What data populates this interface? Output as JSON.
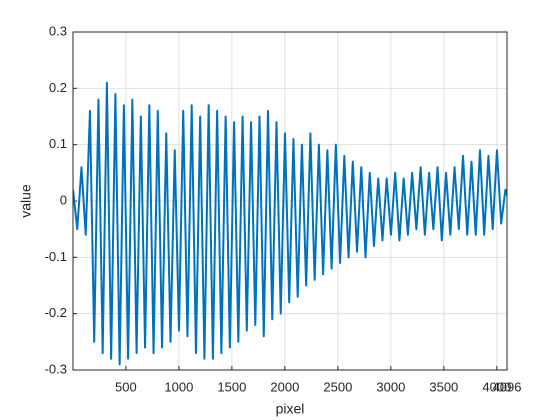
{
  "chart_data": {
    "type": "line",
    "xlabel": "pixel",
    "ylabel": "value",
    "color": "#0072bd",
    "grid": true,
    "xlim": [
      1,
      4096
    ],
    "xticks": [
      500,
      1000,
      1500,
      2000,
      2500,
      3000,
      3500,
      4000,
      4096
    ],
    "ylim": [
      -0.3,
      0.3
    ],
    "yticks": [
      -0.3,
      -0.2,
      -0.1,
      0,
      0.1,
      0.2,
      0.3
    ],
    "x": [
      1,
      41,
      81,
      121,
      161,
      201,
      241,
      281,
      321,
      361,
      401,
      441,
      481,
      521,
      561,
      601,
      641,
      681,
      721,
      761,
      801,
      841,
      881,
      921,
      961,
      1001,
      1041,
      1081,
      1121,
      1161,
      1201,
      1241,
      1281,
      1321,
      1361,
      1401,
      1441,
      1481,
      1521,
      1561,
      1601,
      1641,
      1681,
      1721,
      1761,
      1801,
      1841,
      1881,
      1921,
      1961,
      2001,
      2041,
      2081,
      2121,
      2161,
      2201,
      2241,
      2281,
      2321,
      2361,
      2401,
      2441,
      2481,
      2521,
      2561,
      2601,
      2641,
      2681,
      2721,
      2761,
      2801,
      2841,
      2881,
      2921,
      2961,
      3001,
      3041,
      3081,
      3121,
      3161,
      3201,
      3241,
      3281,
      3321,
      3361,
      3401,
      3441,
      3481,
      3521,
      3561,
      3601,
      3641,
      3681,
      3721,
      3761,
      3801,
      3841,
      3881,
      3921,
      3961,
      4001,
      4041,
      4081,
      4096
    ],
    "values": [
      0.02,
      -0.05,
      0.06,
      -0.06,
      0.16,
      -0.25,
      0.18,
      -0.27,
      0.21,
      -0.28,
      0.19,
      -0.29,
      0.17,
      -0.28,
      0.18,
      -0.27,
      0.15,
      -0.26,
      0.17,
      -0.27,
      0.16,
      -0.26,
      0.12,
      -0.25,
      0.09,
      -0.23,
      0.16,
      -0.24,
      0.17,
      -0.27,
      0.15,
      -0.28,
      0.17,
      -0.28,
      0.16,
      -0.27,
      0.15,
      -0.26,
      0.14,
      -0.25,
      0.15,
      -0.23,
      0.14,
      -0.22,
      0.15,
      -0.24,
      0.16,
      -0.21,
      0.14,
      -0.2,
      0.12,
      -0.18,
      0.11,
      -0.17,
      0.1,
      -0.15,
      0.12,
      -0.14,
      0.1,
      -0.13,
      0.09,
      -0.12,
      0.1,
      -0.11,
      0.08,
      -0.1,
      0.07,
      -0.09,
      0.06,
      -0.1,
      0.05,
      -0.08,
      0.04,
      -0.07,
      0.04,
      -0.06,
      0.05,
      -0.07,
      0.04,
      -0.06,
      0.05,
      -0.05,
      0.06,
      -0.06,
      0.05,
      -0.05,
      0.06,
      -0.07,
      0.05,
      -0.06,
      0.06,
      -0.05,
      0.08,
      -0.06,
      0.07,
      -0.06,
      0.09,
      -0.06,
      0.08,
      -0.05,
      0.09,
      -0.04,
      0.02,
      0.01
    ]
  }
}
